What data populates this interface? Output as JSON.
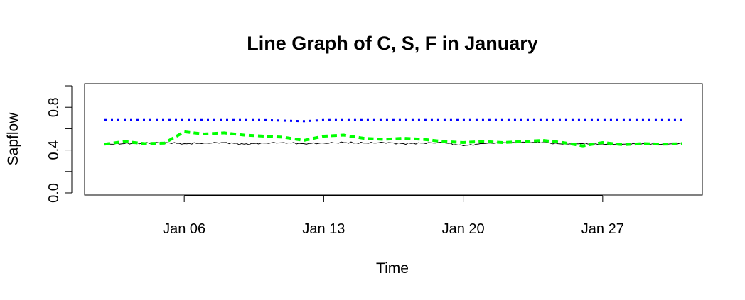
{
  "chart_data": {
    "type": "line",
    "title": "Line Graph of C, S, F in January",
    "xlabel": "Time",
    "ylabel": "Sapflow",
    "xlim": [
      "2021-01-01",
      "2021-02-01"
    ],
    "ylim": [
      -0.02,
      1.02
    ],
    "x_ticks": [
      "Jan 06",
      "Jan 13",
      "Jan 20",
      "Jan 27"
    ],
    "x_tick_dates": [
      "2021-01-06",
      "2021-01-13",
      "2021-01-20",
      "2021-01-27"
    ],
    "y_ticks": [
      "0.0",
      "0.4",
      "0.8"
    ],
    "y_tick_values": [
      0.0,
      0.4,
      0.8
    ],
    "grid": false,
    "series": [
      {
        "color": "#000000",
        "line_style": "solid",
        "x": [
          "2021-01-02",
          "2021-01-03",
          "2021-01-04",
          "2021-01-05",
          "2021-01-06",
          "2021-01-07",
          "2021-01-08",
          "2021-01-09",
          "2021-01-10",
          "2021-01-11",
          "2021-01-12",
          "2021-01-13",
          "2021-01-14",
          "2021-01-15",
          "2021-01-16",
          "2021-01-17",
          "2021-01-18",
          "2021-01-19",
          "2021-01-20",
          "2021-01-21",
          "2021-01-22",
          "2021-01-23",
          "2021-01-24",
          "2021-01-25",
          "2021-01-26",
          "2021-01-27",
          "2021-01-28",
          "2021-01-29",
          "2021-01-30",
          "2021-01-31"
        ],
        "values": [
          0.455,
          0.46,
          0.465,
          0.47,
          0.46,
          0.465,
          0.47,
          0.455,
          0.465,
          0.47,
          0.46,
          0.465,
          0.47,
          0.465,
          0.47,
          0.46,
          0.465,
          0.47,
          0.44,
          0.46,
          0.47,
          0.475,
          0.47,
          0.455,
          0.46,
          0.45,
          0.455,
          0.46,
          0.455,
          0.465
        ]
      },
      {
        "color": "#00ff00",
        "line_style": "dashed",
        "x": [
          "2021-01-02",
          "2021-01-03",
          "2021-01-04",
          "2021-01-05",
          "2021-01-06",
          "2021-01-07",
          "2021-01-08",
          "2021-01-09",
          "2021-01-10",
          "2021-01-11",
          "2021-01-12",
          "2021-01-13",
          "2021-01-14",
          "2021-01-15",
          "2021-01-16",
          "2021-01-17",
          "2021-01-18",
          "2021-01-19",
          "2021-01-20",
          "2021-01-21",
          "2021-01-22",
          "2021-01-23",
          "2021-01-24",
          "2021-01-25",
          "2021-01-26",
          "2021-01-27",
          "2021-01-28",
          "2021-01-29",
          "2021-01-30",
          "2021-01-31"
        ],
        "values": [
          0.455,
          0.48,
          0.46,
          0.465,
          0.57,
          0.55,
          0.56,
          0.54,
          0.53,
          0.52,
          0.49,
          0.53,
          0.54,
          0.51,
          0.5,
          0.51,
          0.5,
          0.48,
          0.47,
          0.48,
          0.47,
          0.48,
          0.49,
          0.47,
          0.44,
          0.47,
          0.45,
          0.46,
          0.455,
          0.46
        ]
      },
      {
        "color": "#0000ff",
        "line_style": "dotted",
        "x": [
          "2021-01-02",
          "2021-01-06",
          "2021-01-10",
          "2021-01-12",
          "2021-01-13",
          "2021-01-17",
          "2021-01-21",
          "2021-01-25",
          "2021-01-27",
          "2021-01-31"
        ],
        "values": [
          0.68,
          0.68,
          0.68,
          0.67,
          0.68,
          0.68,
          0.68,
          0.68,
          0.68,
          0.68
        ]
      }
    ]
  }
}
